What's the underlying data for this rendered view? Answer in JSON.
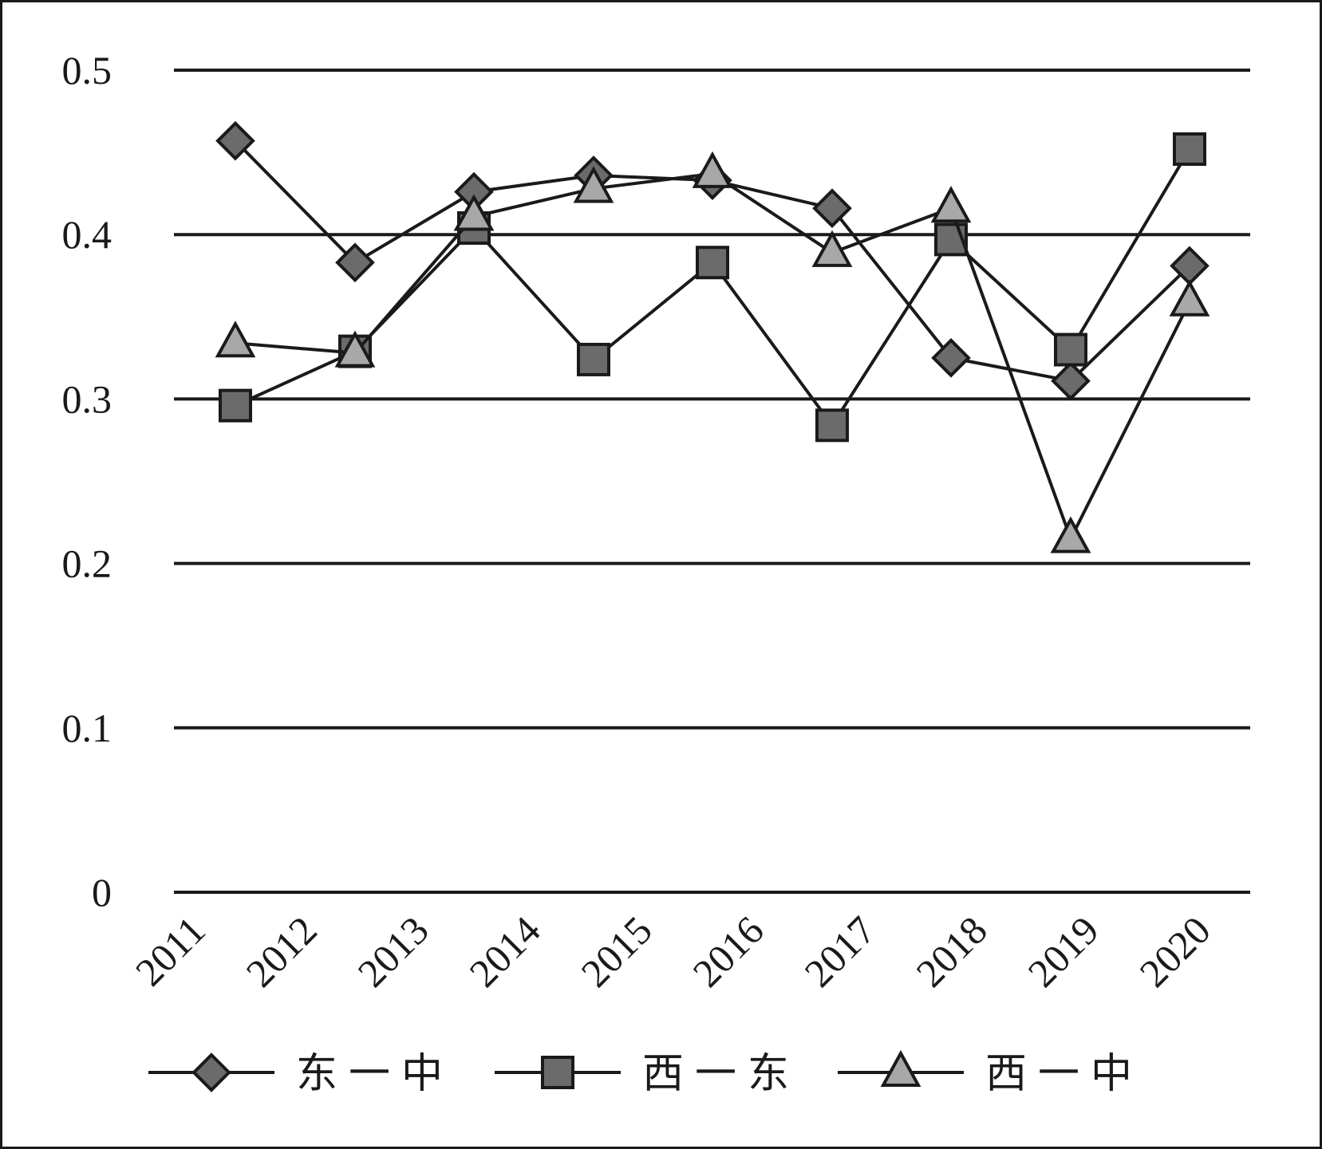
{
  "chart_data": {
    "type": "line",
    "title": "",
    "xlabel": "",
    "ylabel": "",
    "categories": [
      "2011",
      "2012",
      "2013",
      "2014",
      "2015",
      "2016",
      "2017",
      "2018",
      "2019",
      "2020"
    ],
    "ylim": [
      0,
      0.5
    ],
    "y_ticks": [
      "0",
      "0.1",
      "0.2",
      "0.3",
      "0.4",
      "0.5"
    ],
    "grid": "horizontal",
    "legend_position": "bottom",
    "series": [
      {
        "name": "东一中",
        "marker": "diamond",
        "color": "#6b6b6b",
        "values": [
          0.457,
          0.383,
          0.426,
          0.436,
          0.433,
          0.416,
          0.325,
          0.311,
          0.381,
          null
        ]
      },
      {
        "name": "西一东",
        "marker": "square",
        "color": "#6b6b6b",
        "values": [
          0.296,
          0.329,
          0.404,
          0.324,
          0.383,
          0.284,
          0.397,
          0.33,
          0.452,
          null
        ]
      },
      {
        "name": "西一中",
        "marker": "triangle",
        "color": "#a8a8a8",
        "values": [
          0.334,
          0.328,
          0.411,
          0.428,
          0.437,
          0.389,
          0.416,
          0.215,
          0.359,
          null
        ]
      }
    ]
  }
}
